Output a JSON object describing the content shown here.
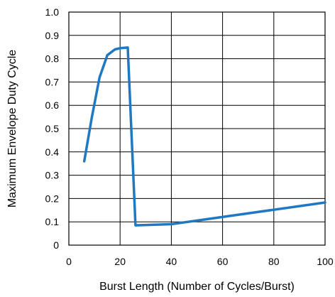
{
  "chart_data": {
    "type": "line",
    "title": "",
    "xlabel": "Burst Length (Number of Cycles/Burst)",
    "ylabel": "Maximum Envelope Duty Cycle",
    "xlim": [
      0,
      100
    ],
    "ylim": [
      0,
      1.0
    ],
    "x_ticks": [
      "0",
      "20",
      "40",
      "60",
      "80",
      "100"
    ],
    "y_ticks": [
      "0",
      "0.1",
      "0.2",
      "0.3",
      "0.4",
      "0.5",
      "0.6",
      "0.7",
      "0.8",
      "0.9",
      "1.0"
    ],
    "grid": true,
    "series": [
      {
        "color": "#1f78c1",
        "x": [
          6,
          9,
          12,
          15,
          18,
          20,
          23,
          26,
          40,
          100
        ],
        "y": [
          0.36,
          0.55,
          0.72,
          0.815,
          0.84,
          0.845,
          0.848,
          0.085,
          0.09,
          0.183
        ]
      }
    ]
  }
}
